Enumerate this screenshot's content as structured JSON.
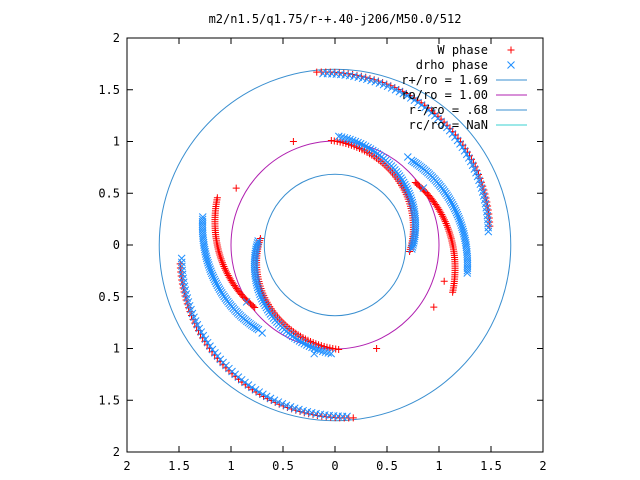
{
  "chart_data": {
    "type": "scatter",
    "title": "m2/n1.5/q1.75/r-+.40-j206/M50.0/512",
    "xlim": [
      -2,
      2
    ],
    "ylim": [
      -2,
      2
    ],
    "x_ticks": [
      {
        "v": -2,
        "label": "2"
      },
      {
        "v": -1.5,
        "label": "1.5"
      },
      {
        "v": -1,
        "label": "1"
      },
      {
        "v": -0.5,
        "label": "0.5"
      },
      {
        "v": 0,
        "label": "0"
      },
      {
        "v": 0.5,
        "label": "0.5"
      },
      {
        "v": 1,
        "label": "1"
      },
      {
        "v": 1.5,
        "label": "1.5"
      },
      {
        "v": 2,
        "label": "2"
      }
    ],
    "y_ticks": [
      {
        "v": 2,
        "label": "2"
      },
      {
        "v": 1.5,
        "label": "1.5"
      },
      {
        "v": 1,
        "label": "1"
      },
      {
        "v": 0.5,
        "label": "0.5"
      },
      {
        "v": 0,
        "label": "0"
      },
      {
        "v": -0.5,
        "label": "0.5"
      },
      {
        "v": -1,
        "label": "1"
      },
      {
        "v": -1.5,
        "label": "1.5"
      },
      {
        "v": -2,
        "label": "2"
      }
    ],
    "circles": [
      {
        "name": "r+/ro = 1.69",
        "r": 1.69,
        "color": "#3a8fd0"
      },
      {
        "name": "ro/ro = 1.00",
        "r": 1.0,
        "color": "#b020b0"
      },
      {
        "name": "r-/ro = .68",
        "r": 0.68,
        "color": "#3a8fd0"
      },
      {
        "name": "rc/ro = NaN",
        "r": null,
        "color": "#3ad0d0"
      }
    ],
    "series": [
      {
        "name": "W phase",
        "marker": "plus",
        "color": "#ff0000",
        "arcs": [
          {
            "r0": 1.68,
            "r1": 1.5,
            "a0": 96,
            "a1": 7
          },
          {
            "r0": 1.68,
            "r1": 1.5,
            "a0": 276,
            "a1": 187
          },
          {
            "r0": 1.01,
            "r1": 0.72,
            "a0": 92,
            "a1": -5
          },
          {
            "r0": 1.01,
            "r1": 0.72,
            "a0": 272,
            "a1": 175
          },
          {
            "r0": 0.98,
            "r1": 1.22,
            "a0": 38,
            "a1": -22
          },
          {
            "r0": 0.98,
            "r1": 1.22,
            "a0": 218,
            "a1": 158
          }
        ],
        "points": [
          [
            -0.4,
            1.0
          ],
          [
            0.4,
            -1.0
          ],
          [
            -0.95,
            0.55
          ],
          [
            0.95,
            -0.6
          ],
          [
            1.05,
            -0.35
          ]
        ]
      },
      {
        "name": "drho phase",
        "marker": "x",
        "color": "#1f8fff",
        "arcs": [
          {
            "r0": 1.66,
            "r1": 1.48,
            "a0": 94,
            "a1": 5
          },
          {
            "r0": 1.66,
            "r1": 1.48,
            "a0": 274,
            "a1": 185
          },
          {
            "r0": 1.05,
            "r1": 0.74,
            "a0": 88,
            "a1": -3
          },
          {
            "r0": 1.05,
            "r1": 0.74,
            "a0": 268,
            "a1": 177
          },
          {
            "r0": 1.1,
            "r1": 1.3,
            "a0": 48,
            "a1": -12
          },
          {
            "r0": 1.1,
            "r1": 1.3,
            "a0": 228,
            "a1": 168
          }
        ],
        "points": [
          [
            0.7,
            0.85
          ],
          [
            0.85,
            0.55
          ],
          [
            -0.85,
            -0.55
          ],
          [
            -0.7,
            -0.85
          ],
          [
            -0.2,
            -1.05
          ]
        ]
      }
    ],
    "legend_position": "top-right"
  }
}
